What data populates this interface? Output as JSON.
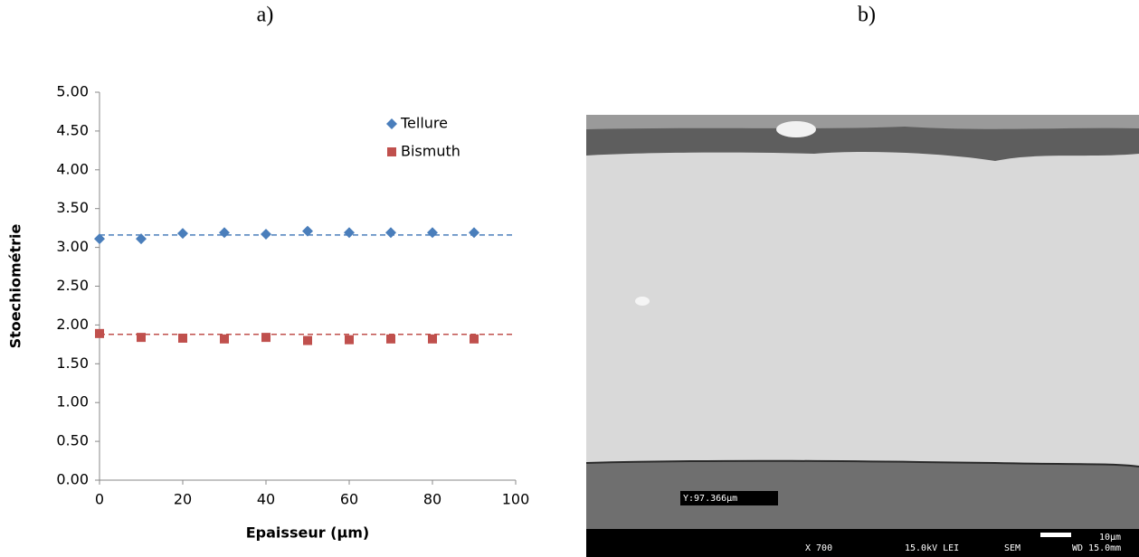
{
  "panels": {
    "a": "a)",
    "b": "b)"
  },
  "chart_data": {
    "type": "scatter",
    "xlabel": "Epaisseur (µm)",
    "ylabel": "Stoechiométrie",
    "x": [
      0,
      10,
      20,
      30,
      40,
      50,
      60,
      70,
      80,
      90
    ],
    "series": [
      {
        "name": "Tellure",
        "color": "#4a7ebb",
        "marker": "diamond",
        "values": [
          3.11,
          3.11,
          3.18,
          3.19,
          3.17,
          3.21,
          3.19,
          3.19,
          3.19,
          3.19
        ],
        "trend": 3.16
      },
      {
        "name": "Bismuth",
        "color": "#c0504d",
        "marker": "square",
        "values": [
          1.89,
          1.84,
          1.83,
          1.82,
          1.84,
          1.8,
          1.81,
          1.82,
          1.82,
          1.82
        ],
        "trend": 1.88
      }
    ],
    "xlim": [
      0,
      100
    ],
    "xticks": [
      0,
      20,
      40,
      60,
      80,
      100
    ],
    "ylim": [
      0,
      5
    ],
    "yticks": [
      {
        "value": 0,
        "label": "0.00"
      },
      {
        "value": 0.5,
        "label": "0.50"
      },
      {
        "value": 1,
        "label": "1.00"
      },
      {
        "value": 1.5,
        "label": "1.50"
      },
      {
        "value": 2,
        "label": "2.00"
      },
      {
        "value": 2.5,
        "label": "2.50"
      },
      {
        "value": 3,
        "label": "3.00"
      },
      {
        "value": 3.5,
        "label": "3.50"
      },
      {
        "value": 4,
        "label": "4.00"
      },
      {
        "value": 4.5,
        "label": "4.50"
      },
      {
        "value": 5,
        "label": "5.00"
      }
    ],
    "legend": "top-right",
    "grid": false
  },
  "sem_image": {
    "measure": "Y:97.366µm",
    "magnification": "X 700",
    "voltage": "15.0kV LEI",
    "mode": "SEM",
    "scale": "10µm",
    "wd": "WD 15.0mm"
  }
}
